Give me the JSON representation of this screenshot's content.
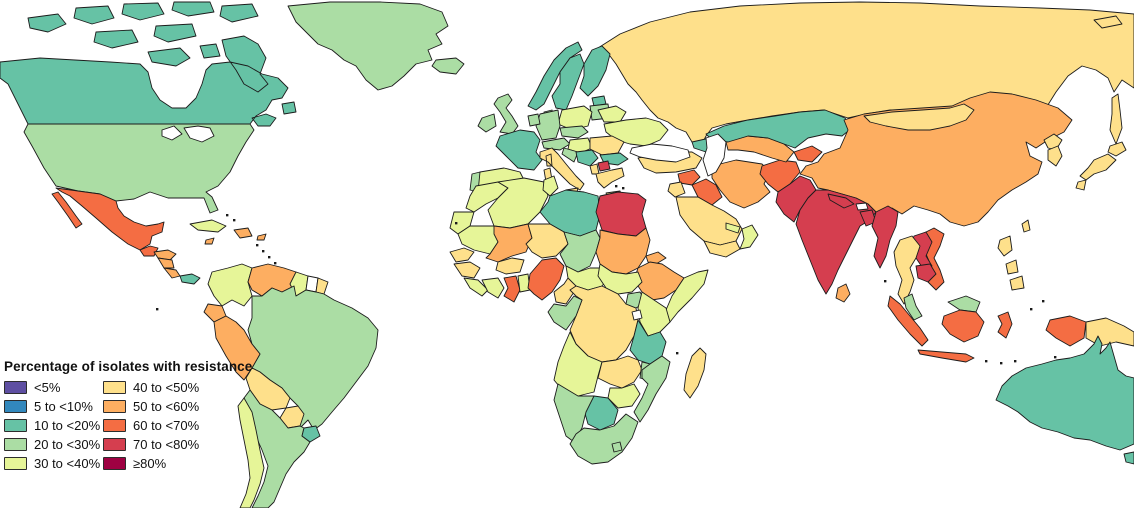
{
  "legend": {
    "title": "Percentage of isolates with resistance",
    "items": [
      {
        "label": "<5%",
        "color": "#5e4fa2"
      },
      {
        "label": "5 to <10%",
        "color": "#3288bd"
      },
      {
        "label": "10 to <20%",
        "color": "#66c2a5"
      },
      {
        "label": "20 to <30%",
        "color": "#abdda4"
      },
      {
        "label": "30 to <40%",
        "color": "#e6f598"
      },
      {
        "label": "40 to <50%",
        "color": "#fee08b"
      },
      {
        "label": "50 to <60%",
        "color": "#fdae61"
      },
      {
        "label": "60 to <70%",
        "color": "#f46d43"
      },
      {
        "label": "70 to <80%",
        "color": "#d53e4f"
      },
      {
        "label": "≥80%",
        "color": "#9e0142"
      }
    ]
  },
  "map": {
    "water_color": "#ffffff",
    "no_data_color": "#ffffff",
    "border_color": "#1c1c1c",
    "countries": [
      {
        "id": "russia",
        "name": "Russia",
        "range": "40 to <50%"
      },
      {
        "id": "canada",
        "name": "Canada",
        "range": "10 to <20%"
      },
      {
        "id": "greenland",
        "name": "Greenland",
        "range": "20 to <30%"
      },
      {
        "id": "iceland",
        "name": "Iceland",
        "range": "20 to <30%"
      },
      {
        "id": "usa",
        "name": "United States",
        "range": "20 to <30%"
      },
      {
        "id": "mexico",
        "name": "Mexico",
        "range": "60 to <70%"
      },
      {
        "id": "guatemala",
        "name": "Guatemala",
        "range": "60 to <70%"
      },
      {
        "id": "honduras",
        "name": "Honduras",
        "range": "50 to <60%"
      },
      {
        "id": "nicaragua",
        "name": "Nicaragua",
        "range": "50 to <60%"
      },
      {
        "id": "costa-rica",
        "name": "Costa Rica",
        "range": "50 to <60%"
      },
      {
        "id": "panama",
        "name": "Panama",
        "range": "10 to <20%"
      },
      {
        "id": "cuba",
        "name": "Cuba",
        "range": "30 to <40%"
      },
      {
        "id": "jamaica",
        "name": "Jamaica",
        "range": "50 to <60%"
      },
      {
        "id": "hispaniola",
        "name": "Dominican Republic / Haiti",
        "range": "50 to <60%"
      },
      {
        "id": "puerto-rico",
        "name": "Puerto Rico",
        "range": "50 to <60%"
      },
      {
        "id": "colombia",
        "name": "Colombia",
        "range": "30 to <40%"
      },
      {
        "id": "venezuela",
        "name": "Venezuela",
        "range": "50 to <60%"
      },
      {
        "id": "guyana",
        "name": "Guyana",
        "range": "30 to <40%"
      },
      {
        "id": "suriname",
        "name": "Suriname",
        "range": "no data"
      },
      {
        "id": "french-guiana",
        "name": "French Guiana",
        "range": "40 to <50%"
      },
      {
        "id": "ecuador",
        "name": "Ecuador",
        "range": "50 to <60%"
      },
      {
        "id": "brazil",
        "name": "Brazil",
        "range": "20 to <30%"
      },
      {
        "id": "peru",
        "name": "Peru",
        "range": "50 to <60%"
      },
      {
        "id": "bolivia",
        "name": "Bolivia",
        "range": "40 to <50%"
      },
      {
        "id": "paraguay",
        "name": "Paraguay",
        "range": "40 to <50%"
      },
      {
        "id": "argentina",
        "name": "Argentina",
        "range": "20 to <30%"
      },
      {
        "id": "chile",
        "name": "Chile",
        "range": "30 to <40%"
      },
      {
        "id": "uruguay",
        "name": "Uruguay",
        "range": "10 to <20%"
      },
      {
        "id": "norway",
        "name": "Norway",
        "range": "10 to <20%"
      },
      {
        "id": "sweden",
        "name": "Sweden",
        "range": "10 to <20%"
      },
      {
        "id": "finland",
        "name": "Finland",
        "range": "10 to <20%"
      },
      {
        "id": "denmark",
        "name": "Denmark",
        "range": "20 to <30%"
      },
      {
        "id": "estonia",
        "name": "Estonia",
        "range": "10 to <20%"
      },
      {
        "id": "latvia-lithuania",
        "name": "Latvia / Lithuania",
        "range": "20 to <30%"
      },
      {
        "id": "uk",
        "name": "United Kingdom",
        "range": "20 to <30%"
      },
      {
        "id": "ireland",
        "name": "Ireland",
        "range": "20 to <30%"
      },
      {
        "id": "belarus",
        "name": "Belarus",
        "range": "30 to <40%"
      },
      {
        "id": "ukraine",
        "name": "Ukraine",
        "range": "30 to <40%"
      },
      {
        "id": "poland",
        "name": "Poland",
        "range": "30 to <40%"
      },
      {
        "id": "germany",
        "name": "Germany",
        "range": "20 to <30%"
      },
      {
        "id": "benelux",
        "name": "Belgium / Netherlands",
        "range": "20 to <30%"
      },
      {
        "id": "france",
        "name": "France",
        "range": "10 to <20%"
      },
      {
        "id": "spain",
        "name": "Spain",
        "range": "30 to <40%"
      },
      {
        "id": "portugal",
        "name": "Portugal",
        "range": "20 to <30%"
      },
      {
        "id": "czech-slovakia",
        "name": "Czechia / Slovakia",
        "range": "20 to <30%"
      },
      {
        "id": "switzerland-austria",
        "name": "Switzerland / Austria",
        "range": "20 to <30%"
      },
      {
        "id": "hungary",
        "name": "Hungary",
        "range": "30 to <40%"
      },
      {
        "id": "croatia",
        "name": "Croatia",
        "range": "20 to <30%"
      },
      {
        "id": "serbia-bosnia",
        "name": "Serbia / Bosnia",
        "range": "10 to <20%"
      },
      {
        "id": "romania",
        "name": "Romania",
        "range": "40 to <50%"
      },
      {
        "id": "bulgaria",
        "name": "Bulgaria",
        "range": "10 to <20%"
      },
      {
        "id": "albania",
        "name": "Albania",
        "range": "40 to <50%"
      },
      {
        "id": "north-macedonia",
        "name": "North Macedonia",
        "range": "70 to <80%"
      },
      {
        "id": "greece",
        "name": "Greece",
        "range": "40 to <50%"
      },
      {
        "id": "italy",
        "name": "Italy",
        "range": "40 to <50%"
      },
      {
        "id": "turkey",
        "name": "Turkey",
        "range": "40 to <50%"
      },
      {
        "id": "caucasus",
        "name": "Caucasus",
        "range": "10 to <20%"
      },
      {
        "id": "syria",
        "name": "Syria",
        "range": "60 to <70%"
      },
      {
        "id": "iraq",
        "name": "Iraq",
        "range": "60 to <70%"
      },
      {
        "id": "jordan-israel",
        "name": "Jordan / Israel",
        "range": "40 to <50%"
      },
      {
        "id": "saudi-arabia",
        "name": "Saudi Arabia",
        "range": "40 to <50%"
      },
      {
        "id": "yemen",
        "name": "Yemen",
        "range": "40 to <50%"
      },
      {
        "id": "oman",
        "name": "Oman",
        "range": "30 to <40%"
      },
      {
        "id": "uae-qatar",
        "name": "UAE / Qatar",
        "range": "30 to <40%"
      },
      {
        "id": "iran",
        "name": "Iran",
        "range": "50 to <60%"
      },
      {
        "id": "afghanistan",
        "name": "Afghanistan",
        "range": "60 to <70%"
      },
      {
        "id": "turkmenistan-uzbekistan",
        "name": "Turkmenistan / Uzbekistan",
        "range": "50 to <60%"
      },
      {
        "id": "kyrgyzstan-tajikistan",
        "name": "Kyrgyzstan / Tajikistan",
        "range": "60 to <70%"
      },
      {
        "id": "kazakhstan",
        "name": "Kazakhstan",
        "range": "10 to <20%"
      },
      {
        "id": "china",
        "name": "China",
        "range": "50 to <60%"
      },
      {
        "id": "mongolia",
        "name": "Mongolia",
        "range": "40 to <50%"
      },
      {
        "id": "north-korea",
        "name": "North Korea",
        "range": "40 to <50%"
      },
      {
        "id": "south-korea",
        "name": "South Korea",
        "range": "40 to <50%"
      },
      {
        "id": "japan",
        "name": "Japan",
        "range": "40 to <50%"
      },
      {
        "id": "taiwan",
        "name": "Taiwan",
        "range": "40 to <50%"
      },
      {
        "id": "pakistan",
        "name": "Pakistan",
        "range": "70 to <80%"
      },
      {
        "id": "india",
        "name": "India",
        "range": "70 to <80%"
      },
      {
        "id": "nepal",
        "name": "Nepal",
        "range": "70 to <80%"
      },
      {
        "id": "bhutan",
        "name": "Bhutan",
        "range": "no data"
      },
      {
        "id": "bangladesh",
        "name": "Bangladesh",
        "range": "70 to <80%"
      },
      {
        "id": "sri-lanka",
        "name": "Sri Lanka",
        "range": "50 to <60%"
      },
      {
        "id": "myanmar",
        "name": "Myanmar",
        "range": "70 to <80%"
      },
      {
        "id": "vietnam",
        "name": "Vietnam",
        "range": "60 to <70%"
      },
      {
        "id": "laos",
        "name": "Laos",
        "range": "70 to <80%"
      },
      {
        "id": "thailand",
        "name": "Thailand",
        "range": "40 to <50%"
      },
      {
        "id": "cambodia",
        "name": "Cambodia",
        "range": "70 to <80%"
      },
      {
        "id": "malaysia",
        "name": "Malaysia",
        "range": "20 to <30%"
      },
      {
        "id": "indonesia",
        "name": "Indonesia",
        "range": "60 to <70%"
      },
      {
        "id": "philippines",
        "name": "Philippines",
        "range": "40 to <50%"
      },
      {
        "id": "papua-new-guinea",
        "name": "Papua New Guinea",
        "range": "40 to <50%"
      },
      {
        "id": "australia",
        "name": "Australia",
        "range": "10 to <20%"
      },
      {
        "id": "morocco",
        "name": "Morocco",
        "range": "30 to <40%"
      },
      {
        "id": "western-sahara",
        "name": "Western Sahara",
        "range": "30 to <40%"
      },
      {
        "id": "mauritania",
        "name": "Mauritania",
        "range": "30 to <40%"
      },
      {
        "id": "algeria",
        "name": "Algeria",
        "range": "30 to <40%"
      },
      {
        "id": "tunisia",
        "name": "Tunisia",
        "range": "30 to <40%"
      },
      {
        "id": "libya",
        "name": "Libya",
        "range": "10 to <20%"
      },
      {
        "id": "egypt",
        "name": "Egypt",
        "range": "70 to <80%"
      },
      {
        "id": "mali",
        "name": "Mali",
        "range": "50 to <60%"
      },
      {
        "id": "niger",
        "name": "Niger",
        "range": "40 to <50%"
      },
      {
        "id": "chad",
        "name": "Chad",
        "range": "20 to <30%"
      },
      {
        "id": "sudan",
        "name": "Sudan",
        "range": "50 to <60%"
      },
      {
        "id": "eritrea",
        "name": "Eritrea",
        "range": "50 to <60%"
      },
      {
        "id": "ethiopia",
        "name": "Ethiopia",
        "range": "50 to <60%"
      },
      {
        "id": "somalia",
        "name": "Somalia",
        "range": "30 to <40%"
      },
      {
        "id": "senegal",
        "name": "Senegal",
        "range": "40 to <50%"
      },
      {
        "id": "guinea",
        "name": "Guinea",
        "range": "40 to <50%"
      },
      {
        "id": "sierra-leone-liberia",
        "name": "Sierra Leone / Liberia",
        "range": "30 to <40%"
      },
      {
        "id": "ivory-coast",
        "name": "Côte d'Ivoire",
        "range": "30 to <40%"
      },
      {
        "id": "burkina-faso",
        "name": "Burkina Faso",
        "range": "40 to <50%"
      },
      {
        "id": "ghana",
        "name": "Ghana",
        "range": "60 to <70%"
      },
      {
        "id": "togo-benin",
        "name": "Togo / Benin",
        "range": "30 to <40%"
      },
      {
        "id": "nigeria",
        "name": "Nigeria",
        "range": "60 to <70%"
      },
      {
        "id": "cameroon",
        "name": "Cameroon",
        "range": "40 to <50%"
      },
      {
        "id": "central-african-republic",
        "name": "Central African Republic",
        "range": "30 to <40%"
      },
      {
        "id": "south-sudan",
        "name": "South Sudan",
        "range": "30 to <40%"
      },
      {
        "id": "drc",
        "name": "DR Congo",
        "range": "40 to <50%"
      },
      {
        "id": "uganda",
        "name": "Uganda",
        "range": "20 to <30%"
      },
      {
        "id": "kenya",
        "name": "Kenya",
        "range": "30 to <40%"
      },
      {
        "id": "gabon-congo",
        "name": "Gabon / Congo",
        "range": "20 to <30%"
      },
      {
        "id": "tanzania",
        "name": "Tanzania",
        "range": "10 to <20%"
      },
      {
        "id": "angola",
        "name": "Angola",
        "range": "30 to <40%"
      },
      {
        "id": "zambia",
        "name": "Zambia",
        "range": "40 to <50%"
      },
      {
        "id": "malawi",
        "name": "Malawi",
        "range": "20 to <30%"
      },
      {
        "id": "mozambique",
        "name": "Mozambique",
        "range": "20 to <30%"
      },
      {
        "id": "zimbabwe",
        "name": "Zimbabwe",
        "range": "30 to <40%"
      },
      {
        "id": "botswana",
        "name": "Botswana",
        "range": "10 to <20%"
      },
      {
        "id": "namibia",
        "name": "Namibia",
        "range": "20 to <30%"
      },
      {
        "id": "south-africa",
        "name": "South Africa",
        "range": "20 to <30%"
      },
      {
        "id": "lesotho",
        "name": "Lesotho",
        "range": "20 to <30%"
      },
      {
        "id": "madagascar",
        "name": "Madagascar",
        "range": "40 to <50%"
      }
    ]
  }
}
